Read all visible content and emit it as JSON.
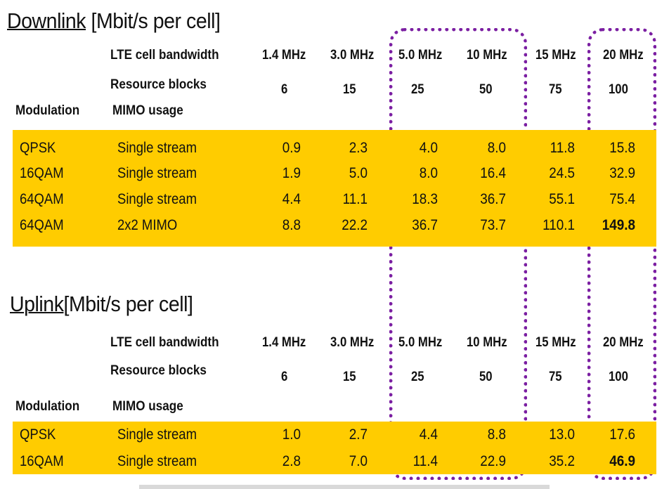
{
  "downlink": {
    "title_main": "Downlink",
    "title_unit": "[Mbit/s per cell]",
    "row_labels": {
      "bandwidth": "LTE cell bandwidth",
      "resource_blocks": "Resource blocks",
      "modulation": "Modulation",
      "mimo": "MIMO usage"
    },
    "bandwidths": [
      "1.4 MHz",
      "3.0 MHz",
      "5.0 MHz",
      "10 MHz",
      "15 MHz",
      "20 MHz"
    ],
    "resource_blocks": [
      "6",
      "15",
      "25",
      "50",
      "75",
      "100"
    ],
    "rows": [
      {
        "modulation": "QPSK",
        "mimo": "Single stream",
        "values": [
          "0.9",
          "2.3",
          "4.0",
          "8.0",
          "11.8",
          "15.8"
        ]
      },
      {
        "modulation": "16QAM",
        "mimo": "Single stream",
        "values": [
          "1.9",
          "5.0",
          "8.0",
          "16.4",
          "24.5",
          "32.9"
        ]
      },
      {
        "modulation": "64QAM",
        "mimo": "Single stream",
        "values": [
          "4.4",
          "11.1",
          "18.3",
          "36.7",
          "55.1",
          "75.4"
        ]
      },
      {
        "modulation": "64QAM",
        "mimo": "2x2 MIMO",
        "values": [
          "8.8",
          "22.2",
          "36.7",
          "73.7",
          "110.1",
          "149.8"
        ]
      }
    ]
  },
  "uplink": {
    "title_main": "Uplink",
    "title_unit": "[Mbit/s per cell]",
    "row_labels": {
      "bandwidth": "LTE cell bandwidth",
      "resource_blocks": "Resource blocks",
      "modulation": "Modulation",
      "mimo": "MIMO usage"
    },
    "bandwidths": [
      "1.4 MHz",
      "3.0 MHz",
      "5.0 MHz",
      "10 MHz",
      "15 MHz",
      "20 MHz"
    ],
    "resource_blocks": [
      "6",
      "15",
      "25",
      "50",
      "75",
      "100"
    ],
    "rows": [
      {
        "modulation": "QPSK",
        "mimo": "Single stream",
        "values": [
          "1.0",
          "2.7",
          "4.4",
          "8.8",
          "13.0",
          "17.6"
        ]
      },
      {
        "modulation": "16QAM",
        "mimo": "Single stream",
        "values": [
          "2.8",
          "7.0",
          "11.4",
          "22.9",
          "35.2",
          "46.9"
        ]
      }
    ]
  },
  "colors": {
    "band": "#FFCC00",
    "highlight_border": "#7B1FA2"
  }
}
